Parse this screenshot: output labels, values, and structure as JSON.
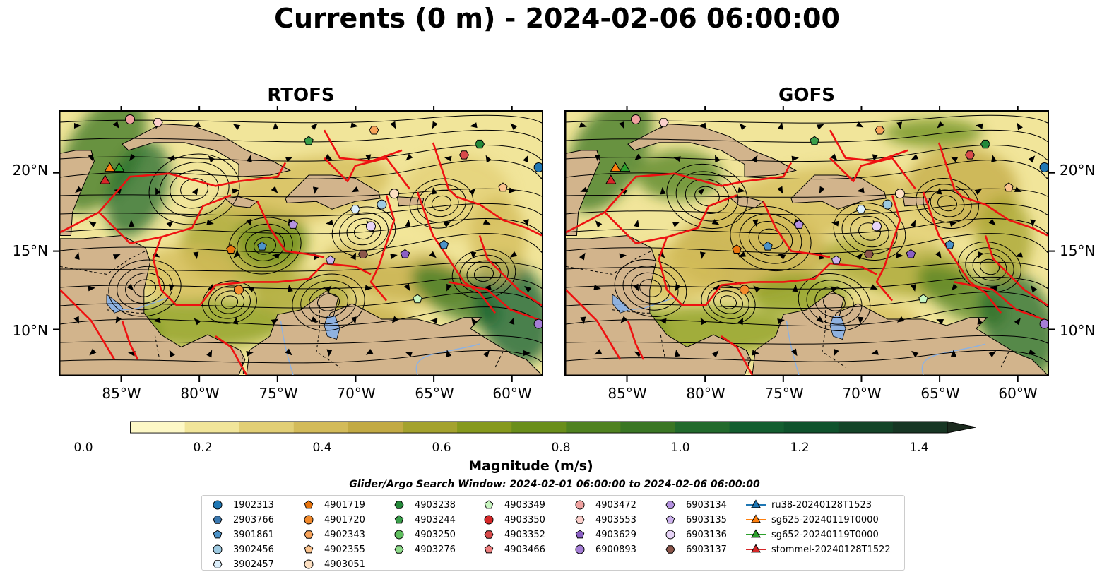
{
  "title": "Currents (0 m) - 2024-02-06 06:00:00",
  "panels": [
    {
      "title": "RTOFS"
    },
    {
      "title": "GOFS"
    }
  ],
  "lat_labels": [
    "20°N",
    "15°N",
    "10°N"
  ],
  "lon_labels": [
    "85°W",
    "80°W",
    "75°W",
    "70°W",
    "65°W",
    "60°W"
  ],
  "map_extent": {
    "lon": [
      -89,
      -58
    ],
    "lat": [
      7,
      24
    ]
  },
  "colorbar": {
    "label": "Magnitude (m/s)",
    "ticks": [
      "0.0",
      "0.2",
      "0.4",
      "0.6",
      "0.8",
      "1.0",
      "1.2",
      "1.4"
    ],
    "colors": [
      "#fdf8c6",
      "#f1e59a",
      "#e2cf76",
      "#d3bb5a",
      "#c2aa44",
      "#a4a22e",
      "#86991d",
      "#6a8e1b",
      "#508220",
      "#3a7624",
      "#226a2c",
      "#135e30",
      "#0f522c",
      "#144428",
      "#173624",
      "#1b2a1e"
    ]
  },
  "search_window": "Glider/Argo Search Window: 2024-02-01 06:00:00 to 2024-02-06 06:00:00",
  "legend": [
    [
      {
        "label": "1902313",
        "marker": "circle",
        "color": "#1f77b4"
      },
      {
        "label": "2903766",
        "marker": "hexagon",
        "color": "#3a78b0"
      },
      {
        "label": "3901861",
        "marker": "pentagon",
        "color": "#4c93c9"
      },
      {
        "label": "3902456",
        "marker": "circle",
        "color": "#9ecae1"
      },
      {
        "label": "3902457",
        "marker": "hexagon",
        "color": "#dbeefb"
      }
    ],
    [
      {
        "label": "4901719",
        "marker": "pentagon",
        "color": "#e8740d"
      },
      {
        "label": "4901720",
        "marker": "circle",
        "color": "#f28a2c"
      },
      {
        "label": "4902343",
        "marker": "hexagon",
        "color": "#f7a35a"
      },
      {
        "label": "4902355",
        "marker": "pentagon",
        "color": "#fbc48f"
      },
      {
        "label": "4903051",
        "marker": "circle",
        "color": "#fde0c2"
      }
    ],
    [
      {
        "label": "4903238",
        "marker": "hexagon",
        "color": "#24893a"
      },
      {
        "label": "4903244",
        "marker": "pentagon",
        "color": "#3a9e4a"
      },
      {
        "label": "4903250",
        "marker": "circle",
        "color": "#5fbf5f"
      },
      {
        "label": "4903276",
        "marker": "hexagon",
        "color": "#8fdc8a"
      }
    ],
    [
      {
        "label": "4903349",
        "marker": "pentagon",
        "color": "#c8f5c0"
      },
      {
        "label": "4903350",
        "marker": "circle",
        "color": "#d62728"
      },
      {
        "label": "4903352",
        "marker": "hexagon",
        "color": "#d84a4a"
      },
      {
        "label": "4903466",
        "marker": "pentagon",
        "color": "#ee7f7f"
      }
    ],
    [
      {
        "label": "4903472",
        "marker": "circle",
        "color": "#f0a2a0"
      },
      {
        "label": "4903553",
        "marker": "hexagon",
        "color": "#fbd0cc"
      },
      {
        "label": "4903629",
        "marker": "pentagon",
        "color": "#8a5fc4"
      },
      {
        "label": "6900893",
        "marker": "circle",
        "color": "#a57ed6"
      }
    ],
    [
      {
        "label": "6903134",
        "marker": "hexagon",
        "color": "#b592e0"
      },
      {
        "label": "6903135",
        "marker": "pentagon",
        "color": "#cdb2ee"
      },
      {
        "label": "6903136",
        "marker": "circle",
        "color": "#e7d4f7"
      },
      {
        "label": "6903137",
        "marker": "hexagon",
        "color": "#8c564b"
      }
    ],
    [
      {
        "label": "ru38-20240128T1523",
        "marker": "triangle-line",
        "color": "#1f77b4"
      },
      {
        "label": "sg625-20240119T0000",
        "marker": "triangle-line",
        "color": "#ff7f0e"
      },
      {
        "label": "sg652-20240119T0000",
        "marker": "triangle-line",
        "color": "#2ca02c"
      },
      {
        "label": "stommel-20240128T1522",
        "marker": "triangle-line",
        "color": "#d62728"
      }
    ]
  ]
}
